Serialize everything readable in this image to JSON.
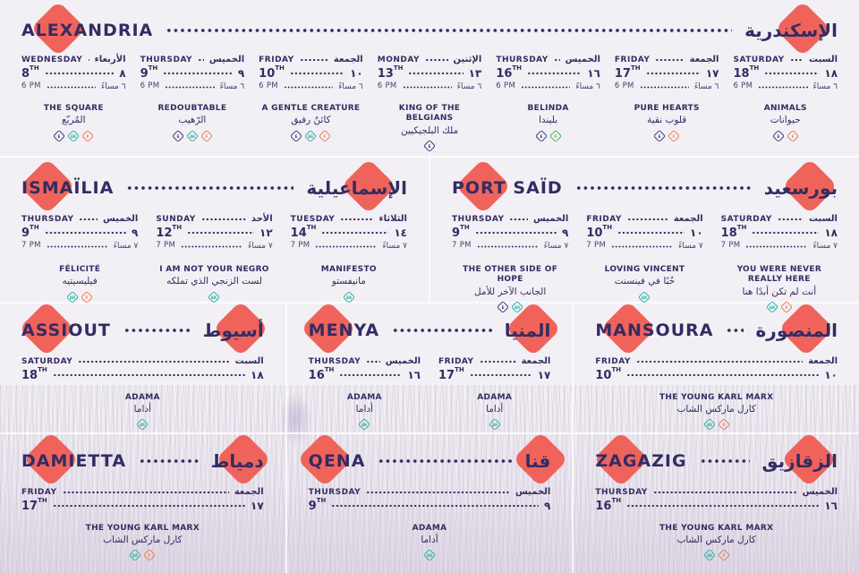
{
  "colors": {
    "background": "#f2f0f4",
    "ink": "#332c63",
    "diamond": "#f0635b",
    "badge_navy": "#3d3a7d",
    "badge_teal": "#2bb3a2",
    "badge_orange": "#ef7a52",
    "badge_green": "#43b649"
  },
  "sections": [
    {
      "city_en": "ALEXANDRIA",
      "city_ar": "الإسكندرية",
      "screenings": [
        {
          "day_en": "WEDNESDAY",
          "day_ar": "الأربعاء",
          "date": "8",
          "suffix": "TH",
          "date_ar": "٨",
          "time": "6 PM",
          "time_ar": "٦ مساءً",
          "film_en": "THE SQUARE",
          "film_ar": "المُربّع",
          "badges": [
            "E",
            "AR",
            "F"
          ]
        },
        {
          "day_en": "THURSDAY",
          "day_ar": "الخميس",
          "date": "9",
          "suffix": "TH",
          "date_ar": "٩",
          "time": "6 PM",
          "time_ar": "٦ مساءً",
          "film_en": "REDOUBTABLE",
          "film_ar": "الرّهيب",
          "badges": [
            "E",
            "AR",
            "F"
          ]
        },
        {
          "day_en": "FRIDAY",
          "day_ar": "الجمعة",
          "date": "10",
          "suffix": "TH",
          "date_ar": "١٠",
          "time": "6 PM",
          "time_ar": "٦ مساءً",
          "film_en": "A GENTLE CREATURE",
          "film_ar": "كائنٌ رفيق",
          "badges": [
            "E",
            "AR",
            "F"
          ]
        },
        {
          "day_en": "MONDAY",
          "day_ar": "الإثنين",
          "date": "13",
          "suffix": "TH",
          "date_ar": "١٣",
          "time": "6 PM",
          "time_ar": "٦ مساءً",
          "film_en": "KING OF THE BELGIANS",
          "film_ar": "ملك البلجيكيين",
          "badges": [
            "E"
          ]
        },
        {
          "day_en": "THURSDAY",
          "day_ar": "الخميس",
          "date": "16",
          "suffix": "TH",
          "date_ar": "١٦",
          "time": "6 PM",
          "time_ar": "٦ مساءً",
          "film_en": "BELINDA",
          "film_ar": "بليندا",
          "badges": [
            "E",
            "F"
          ]
        },
        {
          "day_en": "FRIDAY",
          "day_ar": "الجمعة",
          "date": "17",
          "suffix": "TH",
          "date_ar": "١٧",
          "time": "6 PM",
          "time_ar": "٦ مساءً",
          "film_en": "PURE HEARTS",
          "film_ar": "قلوب نقية",
          "badges": [
            "E",
            "F"
          ]
        },
        {
          "day_en": "SATURDAY",
          "day_ar": "السبت",
          "date": "18",
          "suffix": "TH",
          "date_ar": "١٨",
          "time": "6 PM",
          "time_ar": "٦ مساءً",
          "film_en": "ANIMALS",
          "film_ar": "حيوانات",
          "badges": [
            "E",
            "F"
          ]
        }
      ]
    },
    {
      "city_en": "ISMAÏLIA",
      "city_ar": "الإسماعيلية",
      "screenings": [
        {
          "day_en": "THURSDAY",
          "day_ar": "الخميس",
          "date": "9",
          "suffix": "TH",
          "date_ar": "٩",
          "time": "7 PM",
          "time_ar": "٧ مساءً",
          "film_en": "FÉLICITÉ",
          "film_ar": "فيليسيتيه",
          "badges": [
            "AR",
            "F"
          ]
        },
        {
          "day_en": "SUNDAY",
          "day_ar": "الأحد",
          "date": "12",
          "suffix": "TH",
          "date_ar": "١٢",
          "time": "7 PM",
          "time_ar": "٧ مساءً",
          "film_en": "I AM NOT YOUR NEGRO",
          "film_ar": "لست الزنجي الذي تملكه",
          "badges": [
            "AR"
          ]
        },
        {
          "day_en": "TUESDAY",
          "day_ar": "الثلاثاء",
          "date": "14",
          "suffix": "TH",
          "date_ar": "١٤",
          "time": "7 PM",
          "time_ar": "٧ مساءً",
          "film_en": "MANIFESTO",
          "film_ar": "مانيفستو",
          "badges": [
            "AR"
          ]
        }
      ]
    },
    {
      "city_en": "PORT SAÏD",
      "city_ar": "بورسعيد",
      "screenings": [
        {
          "day_en": "THURSDAY",
          "day_ar": "الخميس",
          "date": "9",
          "suffix": "TH",
          "date_ar": "٩",
          "time": "7 PM",
          "time_ar": "٧ مساءً",
          "film_en": "THE OTHER SIDE OF HOPE",
          "film_ar": "الجانب الآخر للأمل",
          "badges": [
            "E",
            "AR"
          ]
        },
        {
          "day_en": "FRIDAY",
          "day_ar": "الجمعة",
          "date": "10",
          "suffix": "TH",
          "date_ar": "١٠",
          "time": "7 PM",
          "time_ar": "٧ مساءً",
          "film_en": "LOVING VINCENT",
          "film_ar": "حُبًا في فينسنت",
          "badges": [
            "AR"
          ]
        },
        {
          "day_en": "SATURDAY",
          "day_ar": "السبت",
          "date": "18",
          "suffix": "TH",
          "date_ar": "١٨",
          "time": "7 PM",
          "time_ar": "٧ مساءً",
          "film_en": "YOU WERE NEVER REALLY HERE",
          "film_ar": "أنت لم تكن أبدًا هنا",
          "badges": [
            "AR",
            "F"
          ]
        }
      ]
    },
    {
      "city_en": "ASSIOUT",
      "city_ar": "أسيوط",
      "screenings": [
        {
          "day_en": "SATURDAY",
          "day_ar": "السبت",
          "date": "18",
          "suffix": "TH",
          "date_ar": "١٨",
          "film_en": "ADAMA",
          "film_ar": "أداما",
          "badges": [
            "AR"
          ]
        }
      ]
    },
    {
      "city_en": "MENYA",
      "city_ar": "المنيا",
      "screenings": [
        {
          "day_en": "THURSDAY",
          "day_ar": "الخميس",
          "date": "16",
          "suffix": "TH",
          "date_ar": "١٦",
          "film_en": "ADAMA",
          "film_ar": "أداما",
          "badges": [
            "AR"
          ]
        },
        {
          "day_en": "FRIDAY",
          "day_ar": "الجمعة",
          "date": "17",
          "suffix": "TH",
          "date_ar": "١٧",
          "film_en": "ADAMA",
          "film_ar": "أداما",
          "badges": [
            "AR"
          ]
        }
      ]
    },
    {
      "city_en": "MANSOURA",
      "city_ar": "المنصورة",
      "screenings": [
        {
          "day_en": "FRIDAY",
          "day_ar": "الجمعة",
          "date": "10",
          "suffix": "TH",
          "date_ar": "١٠",
          "film_en": "THE YOUNG KARL MARX",
          "film_ar": "كارل ماركس الشاب",
          "badges": [
            "AR",
            "F"
          ]
        }
      ]
    },
    {
      "city_en": "DAMIETTA",
      "city_ar": "دمياط",
      "screenings": [
        {
          "day_en": "FRIDAY",
          "day_ar": "الجمعة",
          "date": "17",
          "suffix": "TH",
          "date_ar": "١٧",
          "film_en": "THE YOUNG KARL MARX",
          "film_ar": "كارل ماركس الشاب",
          "badges": [
            "AR",
            "F"
          ]
        }
      ]
    },
    {
      "city_en": "QENA",
      "city_ar": "قنا",
      "screenings": [
        {
          "day_en": "THURSDAY",
          "day_ar": "الخميس",
          "date": "9",
          "suffix": "TH",
          "date_ar": "٩",
          "film_en": "ADAMA",
          "film_ar": "أداما",
          "badges": [
            "AR"
          ]
        }
      ]
    },
    {
      "city_en": "ZAGAZIG",
      "city_ar": "الزقازيق",
      "screenings": [
        {
          "day_en": "THURSDAY",
          "day_ar": "الخميس",
          "date": "16",
          "suffix": "TH",
          "date_ar": "١٦",
          "film_en": "THE YOUNG KARL MARX",
          "film_ar": "كارل ماركس الشاب",
          "badges": [
            "AR",
            "F"
          ]
        }
      ]
    }
  ]
}
